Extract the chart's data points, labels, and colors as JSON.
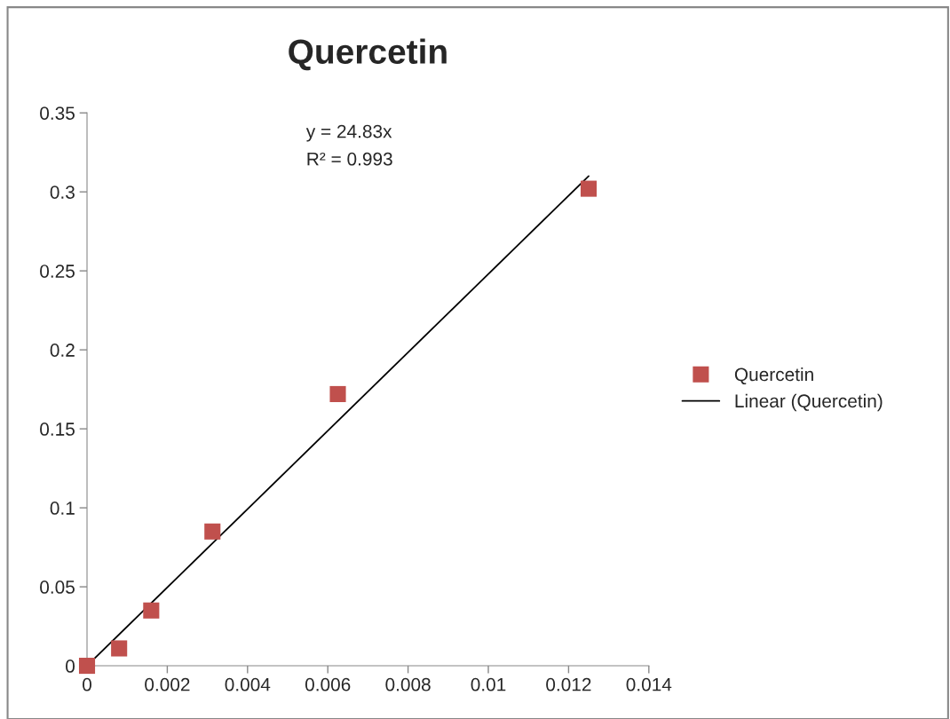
{
  "chart_data": {
    "type": "scatter",
    "title": "Quercetin",
    "annotations": [
      "y = 24.83x",
      "R² = 0.993"
    ],
    "series": [
      {
        "name": "Quercetin",
        "color": "#c0504d",
        "marker": "square",
        "x": [
          0,
          0.0008,
          0.0016,
          0.003125,
          0.00625,
          0.0125
        ],
        "values": [
          0,
          0.011,
          0.035,
          0.085,
          0.172,
          0.302
        ]
      },
      {
        "name": "Linear (Quercetin)",
        "type": "line",
        "color": "#000000",
        "marker": "none",
        "line_style": "solid",
        "x": [
          0,
          0.0125
        ],
        "values": [
          0,
          0.31
        ]
      }
    ],
    "xlim": [
      0,
      0.014
    ],
    "xticks": [
      0,
      0.002,
      0.004,
      0.006,
      0.008,
      0.01,
      0.012,
      0.014
    ],
    "ylim": [
      0,
      0.35
    ],
    "yticks": [
      0,
      0.05,
      0.1,
      0.15,
      0.2,
      0.25,
      0.3,
      0.35
    ],
    "grid": false,
    "legend": "right"
  }
}
